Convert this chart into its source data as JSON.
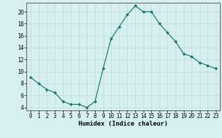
{
  "x": [
    0,
    1,
    2,
    3,
    4,
    5,
    6,
    7,
    8,
    9,
    10,
    11,
    12,
    13,
    14,
    15,
    16,
    17,
    18,
    19,
    20,
    21,
    22,
    23
  ],
  "y": [
    9,
    8,
    7,
    6.5,
    5,
    4.5,
    4.5,
    4,
    5,
    10.5,
    15.5,
    17.5,
    19.5,
    21,
    20,
    20,
    18,
    16.5,
    15,
    13,
    12.5,
    11.5,
    11,
    10.5
  ],
  "line_color": "#1a7a6e",
  "marker": "D",
  "marker_size": 2.0,
  "bg_color": "#d6f0ef",
  "grid_color": "#c8dede",
  "xlabel": "Humidex (Indice chaleur)",
  "xlabel_fontsize": 6.5,
  "tick_fontsize": 5.5,
  "ylim": [
    3.5,
    21.5
  ],
  "xlim": [
    -0.5,
    23.5
  ],
  "yticks": [
    4,
    6,
    8,
    10,
    12,
    14,
    16,
    18,
    20
  ],
  "xticks": [
    0,
    1,
    2,
    3,
    4,
    5,
    6,
    7,
    8,
    9,
    10,
    11,
    12,
    13,
    14,
    15,
    16,
    17,
    18,
    19,
    20,
    21,
    22,
    23
  ]
}
